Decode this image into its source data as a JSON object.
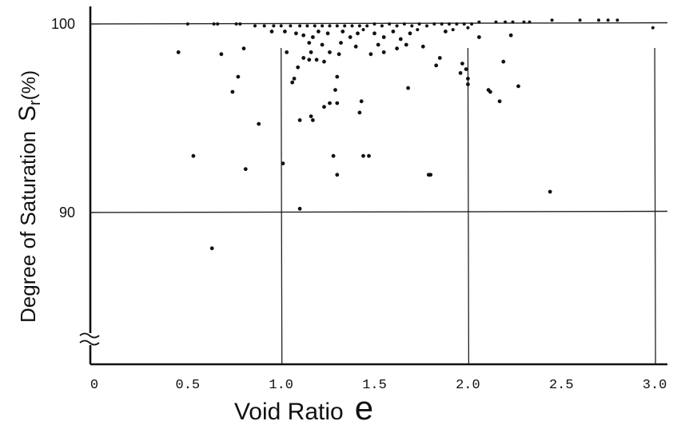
{
  "chart_data": {
    "type": "scatter",
    "xlabel": "Void Ratio",
    "xlabel_symbol": "e",
    "ylabel": "Degree of Saturation",
    "ylabel_symbol": "S",
    "ylabel_subscript": "r",
    "ylabel_unit": "(%)",
    "xlim": [
      0,
      3.2
    ],
    "ylim": [
      82.5,
      101
    ],
    "x_ticks": [
      "0",
      "0.5",
      "1.0",
      "1.5",
      "2.0",
      "2.5",
      "3.0"
    ],
    "x_tick_values": [
      0,
      0.5,
      1.0,
      1.5,
      2.0,
      2.5,
      3.0
    ],
    "y_ticks": [
      "100",
      "90"
    ],
    "y_tick_values": [
      100,
      90
    ],
    "axis_break": "y",
    "gridlines_x": [
      1.0,
      2.0,
      3.0
    ],
    "gridlines_y": [
      100,
      90
    ],
    "grid": true,
    "legend": "none",
    "points": [
      [
        0.5,
        100.0
      ],
      [
        0.64,
        100.0
      ],
      [
        0.66,
        100.0
      ],
      [
        0.76,
        100.0
      ],
      [
        0.78,
        100.0
      ],
      [
        0.86,
        99.9
      ],
      [
        0.91,
        99.9
      ],
      [
        0.96,
        99.9
      ],
      [
        1.0,
        99.9
      ],
      [
        1.05,
        99.9
      ],
      [
        1.1,
        99.9
      ],
      [
        1.14,
        99.9
      ],
      [
        1.18,
        99.9
      ],
      [
        1.22,
        99.9
      ],
      [
        1.26,
        99.9
      ],
      [
        1.3,
        99.9
      ],
      [
        1.34,
        99.9
      ],
      [
        1.38,
        99.9
      ],
      [
        1.42,
        99.9
      ],
      [
        1.46,
        99.9
      ],
      [
        1.5,
        100.0
      ],
      [
        1.54,
        99.9
      ],
      [
        1.58,
        100.0
      ],
      [
        1.62,
        99.9
      ],
      [
        1.66,
        100.0
      ],
      [
        1.7,
        99.9
      ],
      [
        1.74,
        100.0
      ],
      [
        1.78,
        99.9
      ],
      [
        1.82,
        100.0
      ],
      [
        1.86,
        100.0
      ],
      [
        1.9,
        100.0
      ],
      [
        1.94,
        100.0
      ],
      [
        1.98,
        100.0
      ],
      [
        2.02,
        100.0
      ],
      [
        2.06,
        100.1
      ],
      [
        2.15,
        100.1
      ],
      [
        2.2,
        100.1
      ],
      [
        2.24,
        100.1
      ],
      [
        2.3,
        100.1
      ],
      [
        2.33,
        100.1
      ],
      [
        2.45,
        100.2
      ],
      [
        2.6,
        100.2
      ],
      [
        2.7,
        100.2
      ],
      [
        2.75,
        100.2
      ],
      [
        2.8,
        100.2
      ],
      [
        0.95,
        99.6
      ],
      [
        1.02,
        99.6
      ],
      [
        1.08,
        99.5
      ],
      [
        1.12,
        99.4
      ],
      [
        1.17,
        99.3
      ],
      [
        1.2,
        99.6
      ],
      [
        1.25,
        99.5
      ],
      [
        1.33,
        99.6
      ],
      [
        1.37,
        99.3
      ],
      [
        1.41,
        99.5
      ],
      [
        1.44,
        99.7
      ],
      [
        1.5,
        99.5
      ],
      [
        1.55,
        99.3
      ],
      [
        1.6,
        99.6
      ],
      [
        1.64,
        99.2
      ],
      [
        1.69,
        99.5
      ],
      [
        1.73,
        99.7
      ],
      [
        1.88,
        99.6
      ],
      [
        1.92,
        99.7
      ],
      [
        2.0,
        99.8
      ],
      [
        1.15,
        99.0
      ],
      [
        1.22,
        98.9
      ],
      [
        1.32,
        99.0
      ],
      [
        1.4,
        98.8
      ],
      [
        1.52,
        98.9
      ],
      [
        1.62,
        98.7
      ],
      [
        1.67,
        98.9
      ],
      [
        1.16,
        98.5
      ],
      [
        1.26,
        98.5
      ],
      [
        1.31,
        98.4
      ],
      [
        1.48,
        98.4
      ],
      [
        1.55,
        98.5
      ],
      [
        1.76,
        98.8
      ],
      [
        2.23,
        99.4
      ],
      [
        2.06,
        99.3
      ],
      [
        0.45,
        98.5
      ],
      [
        0.68,
        98.4
      ],
      [
        0.8,
        98.7
      ],
      [
        1.03,
        98.5
      ],
      [
        1.12,
        98.2
      ],
      [
        1.15,
        98.1
      ],
      [
        1.19,
        98.1
      ],
      [
        1.23,
        98.0
      ],
      [
        1.85,
        98.2
      ],
      [
        1.83,
        97.8
      ],
      [
        2.19,
        98.0
      ],
      [
        1.97,
        97.9
      ],
      [
        1.99,
        97.6
      ],
      [
        1.96,
        97.4
      ],
      [
        2.0,
        97.1
      ],
      [
        2.0,
        96.8
      ],
      [
        1.3,
        97.2
      ],
      [
        1.09,
        97.7
      ],
      [
        1.07,
        97.1
      ],
      [
        1.06,
        96.9
      ],
      [
        0.77,
        97.2
      ],
      [
        0.74,
        96.4
      ],
      [
        1.29,
        96.5
      ],
      [
        1.68,
        96.6
      ],
      [
        2.11,
        96.5
      ],
      [
        2.12,
        96.4
      ],
      [
        2.27,
        96.7
      ],
      [
        2.17,
        95.9
      ],
      [
        1.26,
        95.8
      ],
      [
        1.3,
        95.8
      ],
      [
        1.23,
        95.6
      ],
      [
        1.43,
        95.9
      ],
      [
        1.42,
        95.3
      ],
      [
        1.16,
        95.1
      ],
      [
        1.17,
        94.9
      ],
      [
        1.1,
        94.9
      ],
      [
        0.88,
        94.7
      ],
      [
        0.53,
        93.0
      ],
      [
        1.28,
        93.0
      ],
      [
        1.44,
        93.0
      ],
      [
        1.47,
        93.0
      ],
      [
        1.01,
        92.6
      ],
      [
        0.81,
        92.3
      ],
      [
        1.3,
        92.0
      ],
      [
        1.79,
        92.0
      ],
      [
        1.8,
        92.0
      ],
      [
        2.44,
        91.1
      ],
      [
        1.1,
        90.2
      ],
      [
        0.63,
        88.1
      ],
      [
        2.99,
        99.8
      ]
    ]
  }
}
